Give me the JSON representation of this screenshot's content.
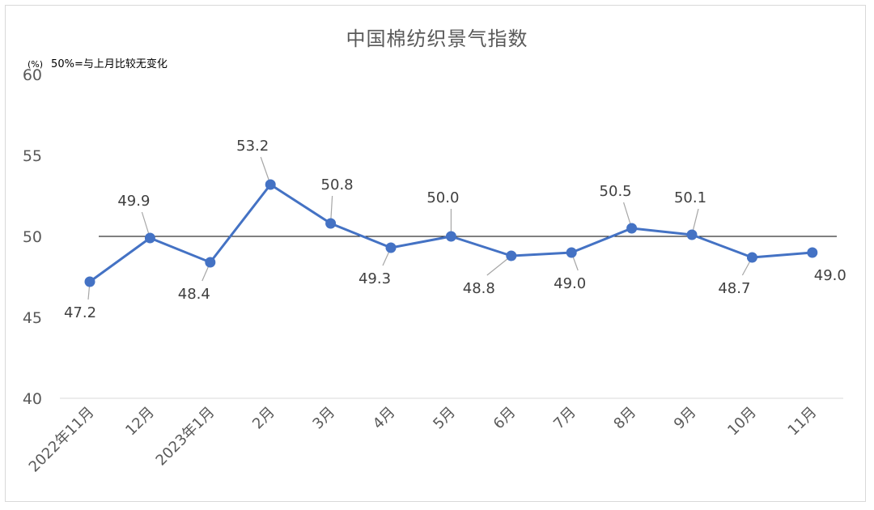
{
  "chart_data": {
    "type": "line",
    "title": "中国棉纺织景气指数",
    "unit_label": "(%)",
    "note": "50%=与上月比较无变化",
    "categories": [
      "2022年11月",
      "12月",
      "2023年1月",
      "2月",
      "3月",
      "4月",
      "5月",
      "6月",
      "7月",
      "8月",
      "9月",
      "10月",
      "11月"
    ],
    "series": [
      {
        "values": [
          47.2,
          49.9,
          48.4,
          53.2,
          50.8,
          49.3,
          50.0,
          48.8,
          49.0,
          50.5,
          50.1,
          48.7,
          49.0
        ]
      }
    ],
    "data_labels": [
      "47.2",
      "49.9",
      "48.4",
      "53.2",
      "50.8",
      "49.3",
      "50.0",
      "48.8",
      "49.0",
      "50.5",
      "50.1",
      "48.7",
      "49.0"
    ],
    "y_ticks": [
      "40",
      "45",
      "50",
      "55",
      "60"
    ],
    "ylim": [
      40,
      60
    ],
    "reference_line": 50,
    "grid": false,
    "legend": "none",
    "colors": {
      "series": "#4472c4",
      "reference": "#000000",
      "axis": "#d9d9d9",
      "leader": "#a6a6a6"
    }
  }
}
